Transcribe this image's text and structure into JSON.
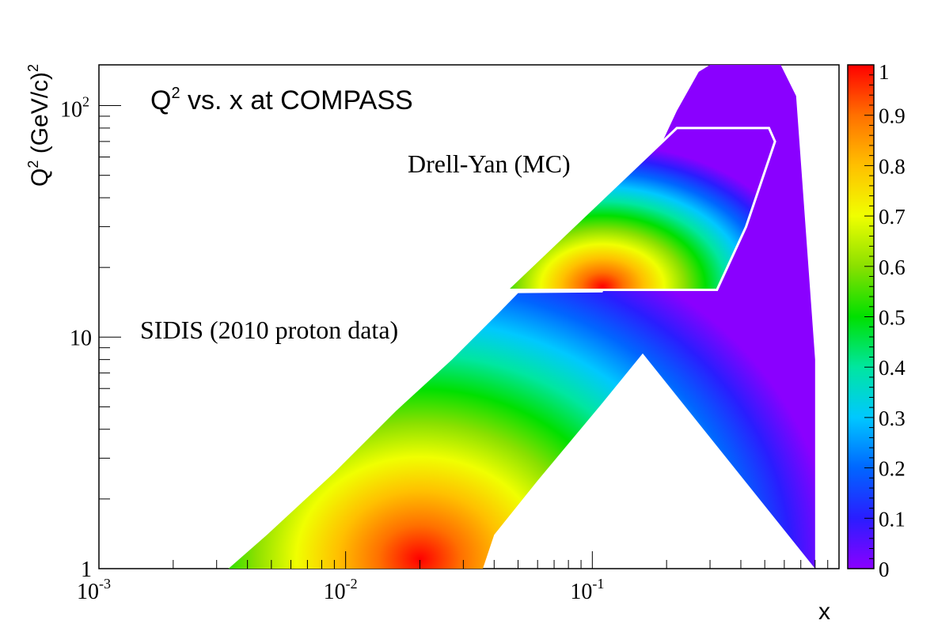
{
  "chart_data": {
    "type": "heatmap",
    "title": "Q² vs. x at COMPASS",
    "title_main": "Q",
    "title_sup": "2",
    "title_rest": " vs. x at COMPASS",
    "xlabel": "x",
    "ylabel": "Q² (GeV/c)²",
    "ylabel_parts": [
      "Q",
      "2",
      " (GeV/c)",
      "2"
    ],
    "x_scale": "log",
    "y_scale": "log",
    "xlim": [
      0.001,
      1
    ],
    "ylim": [
      1,
      150
    ],
    "x_tick_labels": [
      {
        "value": 0.001,
        "base": "10",
        "exp": "-3"
      },
      {
        "value": 0.01,
        "base": "10",
        "exp": "-2"
      },
      {
        "value": 0.1,
        "base": "10",
        "exp": "-1"
      }
    ],
    "y_tick_labels": [
      {
        "value": 1,
        "text": "1"
      },
      {
        "value": 10,
        "text": "10"
      },
      {
        "value": 100,
        "base": "10",
        "exp": "2"
      }
    ],
    "colorbar": {
      "range": [
        0,
        1
      ],
      "tick_labels": [
        "0",
        "0.1",
        "0.2",
        "0.3",
        "0.4",
        "0.5",
        "0.6",
        "0.7",
        "0.8",
        "0.9",
        "1"
      ],
      "palette": [
        "#8a00ff",
        "#2a1dff",
        "#0066ff",
        "#00c8ff",
        "#00e6a0",
        "#00e000",
        "#8ae000",
        "#f0ff00",
        "#ffc000",
        "#ff7000",
        "#ff0000"
      ]
    },
    "annotations": [
      {
        "text": "SIDIS (2010 proton data)",
        "x": 0.0039,
        "Q2": 10.1
      },
      {
        "text": "Drell-Yan (MC)",
        "x": 0.022,
        "Q2": 68
      }
    ],
    "regions": [
      {
        "name": "SIDIS (2010 proton data)",
        "boundary": [
          [
            0.00335,
            1
          ],
          [
            0.0048,
            1.4
          ],
          [
            0.009,
            2.6
          ],
          [
            0.016,
            4.8
          ],
          [
            0.027,
            8.0
          ],
          [
            0.042,
            12.8
          ],
          [
            0.05,
            15.5
          ],
          [
            0.11,
            15.6
          ],
          [
            0.16,
            38
          ],
          [
            0.18,
            60
          ],
          [
            0.22,
            95
          ],
          [
            0.27,
            140
          ],
          [
            0.3,
            150
          ],
          [
            0.4,
            150
          ],
          [
            0.58,
            150
          ],
          [
            0.67,
            110
          ],
          [
            0.8,
            8
          ],
          [
            0.8,
            1
          ],
          [
            0.16,
            8.5
          ],
          [
            0.11,
            5.2
          ],
          [
            0.06,
            2.4
          ],
          [
            0.04,
            1.4
          ],
          [
            0.036,
            1
          ]
        ],
        "hotspot": {
          "x": 0.02,
          "Q2": 1.1,
          "value": 1.0
        },
        "ridge": [
          [
            0.004,
            1.05,
            1.0
          ],
          [
            0.04,
            1.05,
            0.0
          ]
        ]
      },
      {
        "name": "Drell-Yan (MC)",
        "boundary": [
          [
            0.045,
            16
          ],
          [
            0.22,
            80
          ],
          [
            0.52,
            80
          ],
          [
            0.55,
            70
          ],
          [
            0.42,
            30
          ],
          [
            0.32,
            16
          ]
        ],
        "hotspot": {
          "x": 0.11,
          "Q2": 16.5,
          "value": 1.0
        }
      }
    ]
  }
}
